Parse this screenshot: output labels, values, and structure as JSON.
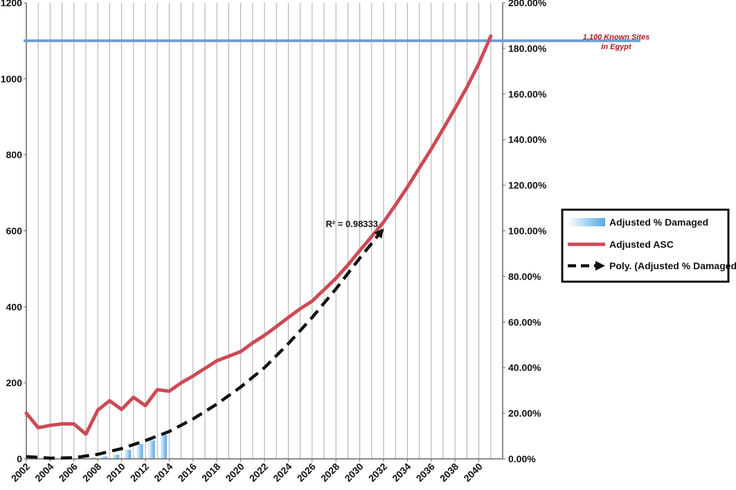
{
  "chart_data": {
    "type": "line",
    "x": [
      2002,
      2003,
      2004,
      2005,
      2006,
      2007,
      2008,
      2009,
      2010,
      2011,
      2012,
      2013,
      2014,
      2015,
      2016,
      2017,
      2018,
      2019,
      2020,
      2021,
      2022,
      2023,
      2024,
      2025,
      2026,
      2027,
      2028,
      2029,
      2030,
      2031,
      2032,
      2033,
      2034,
      2035,
      2036,
      2037,
      2038,
      2039,
      2040,
      2041
    ],
    "x_tick_labels": [
      "2002",
      "2004",
      "2006",
      "2008",
      "2010",
      "2012",
      "2014",
      "2016",
      "2018",
      "2020",
      "2022",
      "2024",
      "2026",
      "2028",
      "2030",
      "2032",
      "2034",
      "2036",
      "2038",
      "2040"
    ],
    "y_left_tick_labels": [
      "0",
      "200",
      "400",
      "600",
      "800",
      "1000",
      "1200"
    ],
    "y_right_tick_labels": [
      "0.00%",
      "20.00%",
      "40.00%",
      "60.00%",
      "80.00%",
      "100.00%",
      "120.00%",
      "140.00%",
      "160.00%",
      "180.00%",
      "200.00%"
    ],
    "ylim_left": [
      0,
      1200
    ],
    "ylim_right": [
      0,
      200
    ],
    "grid": true,
    "legend_position": "right",
    "series": [
      {
        "name": "Adjusted % Damaged",
        "type": "bar",
        "axis": "right",
        "color": "#7fbde8",
        "x": [
          2006,
          2007,
          2008,
          2009,
          2010,
          2011,
          2012,
          2013
        ],
        "values": [
          0.2,
          0.5,
          1.0,
          1.8,
          4.0,
          6.5,
          8.0,
          10.5
        ]
      },
      {
        "name": "Adjusted ASC",
        "type": "line",
        "axis": "left",
        "color": "#cc4a57",
        "x": [
          2002,
          2003,
          2004,
          2005,
          2006,
          2007,
          2008,
          2009,
          2010,
          2011,
          2012,
          2013,
          2014,
          2015,
          2016,
          2017,
          2018,
          2019,
          2020,
          2021,
          2022,
          2023,
          2024,
          2025,
          2026,
          2027,
          2028,
          2029,
          2030,
          2031,
          2032,
          2033,
          2034,
          2035,
          2036,
          2037,
          2038,
          2039,
          2040,
          2041
        ],
        "values": [
          120,
          82,
          88,
          92,
          92,
          65,
          128,
          153,
          130,
          162,
          140,
          182,
          178,
          200,
          218,
          238,
          258,
          270,
          282,
          305,
          325,
          348,
          372,
          395,
          415,
          445,
          475,
          510,
          548,
          585,
          623,
          668,
          715,
          765,
          815,
          868,
          922,
          978,
          1040,
          1112
        ]
      },
      {
        "name": "Poly. (Adjusted % Damaged)",
        "type": "line",
        "dash": true,
        "axis": "right",
        "color": "#111111",
        "x": [
          2002,
          2004,
          2006,
          2008,
          2010,
          2012,
          2014,
          2016,
          2018,
          2020,
          2022,
          2024,
          2026,
          2028,
          2030,
          2032
        ],
        "values": [
          1.0,
          0.3,
          0.5,
          2.0,
          4.5,
          8.0,
          12.0,
          17.5,
          24.0,
          31.5,
          40.0,
          50.5,
          62.0,
          74.5,
          88.0,
          101.0
        ]
      }
    ],
    "reference_line": {
      "value": 1100,
      "axis": "left",
      "color": "#6f9fd4",
      "label_line1": "1,100 Known Sites",
      "label_line2": "In Egypt"
    },
    "annotation": {
      "text": "R² = 0.98333"
    }
  }
}
